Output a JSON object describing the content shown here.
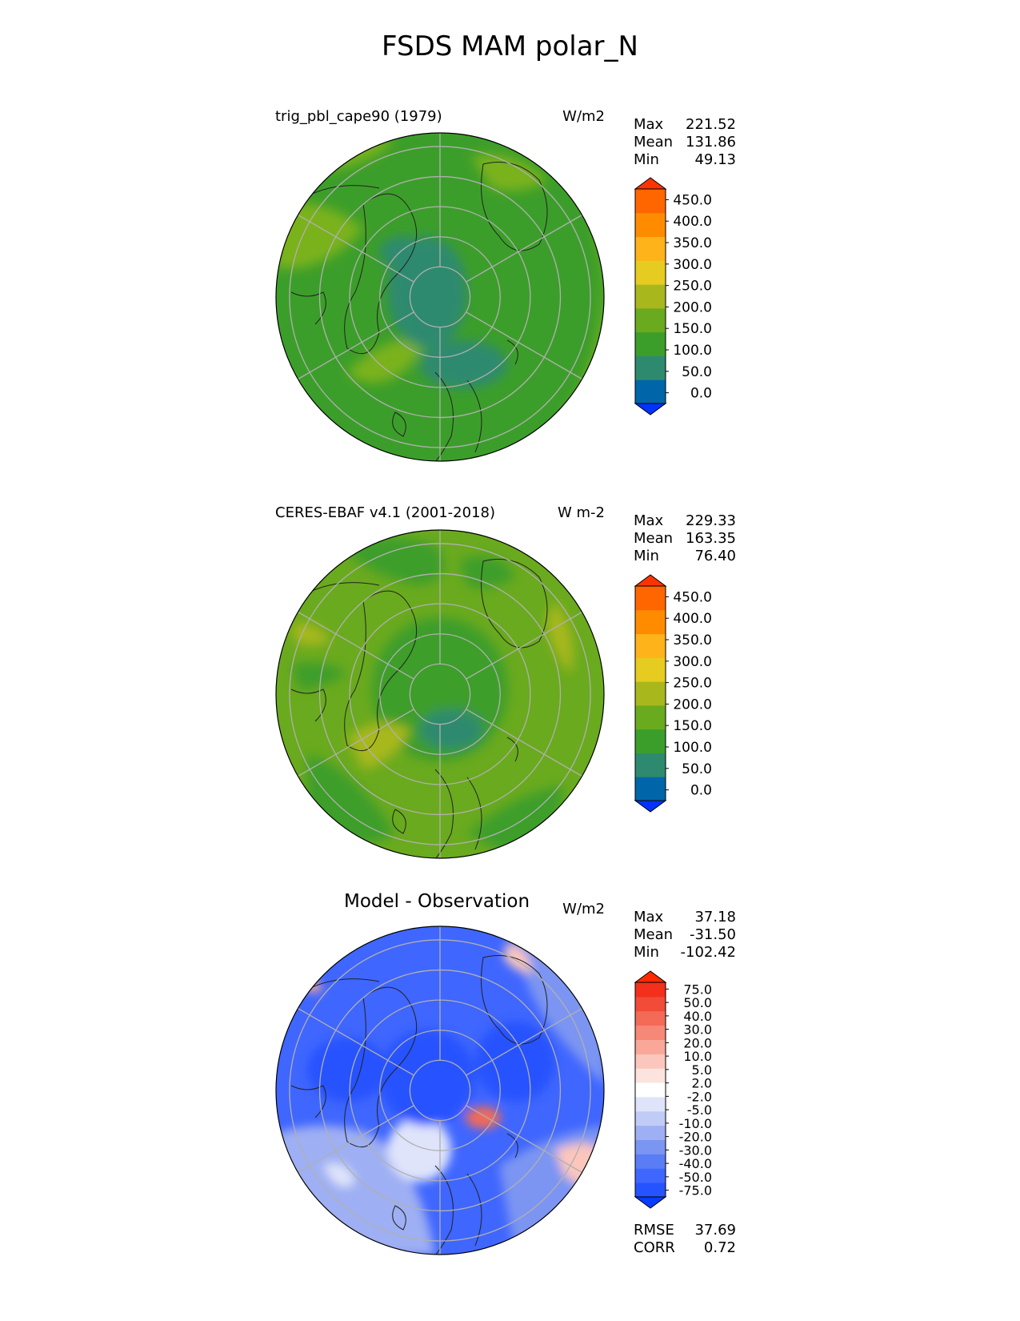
{
  "figure_title": "FSDS MAM polar_N",
  "panels": [
    {
      "title": "trig_pbl_cape90 (1979)",
      "units": "W/m2",
      "stats": {
        "max_label": "Max",
        "max": "221.52",
        "mean_label": "Mean",
        "mean": "131.86",
        "min_label": "Min",
        "min": "49.13"
      },
      "colorbar_labels": [
        "450.0",
        "400.0",
        "350.0",
        "300.0",
        "250.0",
        "200.0",
        "150.0",
        "100.0",
        "50.0",
        "0.0"
      ]
    },
    {
      "title": "CERES-EBAF v4.1 (2001-2018)",
      "units": "W m-2",
      "stats": {
        "max_label": "Max",
        "max": "229.33",
        "mean_label": "Mean",
        "mean": "163.35",
        "min_label": "Min",
        "min": "76.40"
      },
      "colorbar_labels": [
        "450.0",
        "400.0",
        "350.0",
        "300.0",
        "250.0",
        "200.0",
        "150.0",
        "100.0",
        "50.0",
        "0.0"
      ]
    },
    {
      "title": "Model - Observation",
      "units": "W/m2",
      "stats": {
        "max_label": "Max",
        "max": "37.18",
        "mean_label": "Mean",
        "mean": "-31.50",
        "min_label": "Min",
        "min": "-102.42"
      },
      "colorbar_labels": [
        "75.0",
        "50.0",
        "40.0",
        "30.0",
        "20.0",
        "10.0",
        "5.0",
        "2.0",
        "-2.0",
        "-5.0",
        "-10.0",
        "-20.0",
        "-30.0",
        "-40.0",
        "-50.0",
        "-75.0"
      ]
    }
  ],
  "bottom_stats": {
    "rmse_label": "RMSE",
    "rmse": "37.69",
    "corr_label": "CORR",
    "corr": "0.72"
  },
  "colors": {
    "abs_bins": [
      "#0033ff",
      "#0066aa",
      "#2e8a6e",
      "#3c9e2a",
      "#6aaa1e",
      "#a8b81c",
      "#e6cc20",
      "#ffb31a",
      "#ff8c00",
      "#ff6600",
      "#ff3300"
    ],
    "diff_bins": [
      "#0a3cff",
      "#2553ff",
      "#3f66ff",
      "#5a7df5",
      "#7b95f2",
      "#9eaff3",
      "#c0ccf6",
      "#dfe4fa",
      "#ffffff",
      "#fde3de",
      "#fbc6bc",
      "#f8a799",
      "#f58877",
      "#f36a57",
      "#f24b37",
      "#f2301c",
      "#ff2a00"
    ]
  },
  "chart_data": [
    {
      "type": "heatmap",
      "projection": "polar stereographic, north pole",
      "title": "trig_pbl_cape90 (1979)",
      "units": "W/m2",
      "stats": {
        "max": 221.52,
        "mean": 131.86,
        "min": 49.13
      },
      "colorbar_levels": [
        0,
        50,
        100,
        150,
        200,
        250,
        300,
        350,
        400,
        450
      ],
      "extend": "both",
      "dominant_field": "100-150 W/m2 over much of the domain; 50-100 near the pole; 150-250 at lower latitudes and over Greenland"
    },
    {
      "type": "heatmap",
      "projection": "polar stereographic, north pole",
      "title": "CERES-EBAF v4.1 (2001-2018)",
      "units": "W m-2",
      "stats": {
        "max": 229.33,
        "mean": 163.35,
        "min": 76.4
      },
      "colorbar_levels": [
        0,
        50,
        100,
        150,
        200,
        250,
        300,
        350,
        400,
        450
      ],
      "extend": "both"
    },
    {
      "type": "heatmap",
      "projection": "polar stereographic, north pole",
      "title": "Model - Observation",
      "units": "W/m2",
      "stats": {
        "max": 37.18,
        "mean": -31.5,
        "min": -102.42,
        "rmse": 37.69,
        "corr": 0.72
      },
      "colorbar_levels": [
        -75,
        -50,
        -40,
        -30,
        -20,
        -10,
        -5,
        -2,
        2,
        5,
        10,
        20,
        30,
        40,
        50,
        75
      ],
      "extend": "both"
    }
  ]
}
